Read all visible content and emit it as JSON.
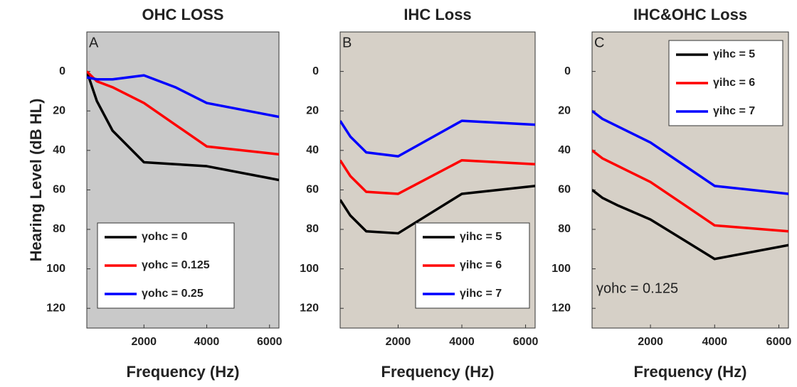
{
  "chart_data": [
    {
      "type": "line",
      "title": "OHC LOSS",
      "panel_label": "A",
      "xlabel": "Frequency (Hz)",
      "ylabel": "Hearing Level (dB HL)",
      "background": "#c9c9c9",
      "legend": "lower left",
      "x": [
        180,
        500,
        1000,
        2000,
        3000,
        4000,
        6300
      ],
      "xlim": [
        180,
        6300
      ],
      "xticks": [
        2000,
        4000,
        6000
      ],
      "ylim": [
        130,
        -20
      ],
      "yticks": [
        0,
        20,
        40,
        60,
        80,
        100,
        120
      ],
      "series": [
        {
          "name": "γohc = 0",
          "color": "#000000",
          "values": [
            0,
            15,
            30,
            46,
            47,
            48,
            55
          ]
        },
        {
          "name": "γohc = 0.125",
          "color": "#ff0000",
          "values": [
            0,
            5,
            8,
            16,
            27,
            38,
            42
          ]
        },
        {
          "name": "γohc = 0.25",
          "color": "#0000ff",
          "values": [
            3,
            4,
            4,
            2,
            8,
            16,
            23
          ]
        }
      ]
    },
    {
      "type": "line",
      "title": "IHC Loss",
      "panel_label": "B",
      "xlabel": "Frequency (Hz)",
      "background": "#d6d0c7",
      "legend": "lower right",
      "x": [
        180,
        500,
        1000,
        2000,
        4000,
        6300
      ],
      "xlim": [
        180,
        6300
      ],
      "xticks": [
        2000,
        4000,
        6000
      ],
      "ylim": [
        130,
        -20
      ],
      "yticks": [
        0,
        20,
        40,
        60,
        80,
        100,
        120
      ],
      "series": [
        {
          "name": "γihc = 5",
          "color": "#000000",
          "values": [
            65,
            73,
            81,
            82,
            62,
            58
          ]
        },
        {
          "name": "γihc = 6",
          "color": "#ff0000",
          "values": [
            45,
            53,
            61,
            62,
            45,
            47
          ]
        },
        {
          "name": "γihc = 7",
          "color": "#0000ff",
          "values": [
            25,
            33,
            41,
            43,
            25,
            27
          ]
        }
      ]
    },
    {
      "type": "line",
      "title": "IHC&OHC Loss",
      "panel_label": "C",
      "xlabel": "Frequency (Hz)",
      "background": "#d6d0c7",
      "legend": "upper right",
      "annotation": "γohc = 0.125",
      "x": [
        180,
        500,
        1000,
        2000,
        3000,
        4000,
        6300
      ],
      "xlim": [
        180,
        6300
      ],
      "xticks": [
        2000,
        4000,
        6000
      ],
      "ylim": [
        130,
        -20
      ],
      "yticks": [
        0,
        20,
        40,
        60,
        80,
        100,
        120
      ],
      "series": [
        {
          "name": "γihc = 5",
          "color": "#000000",
          "values": [
            60,
            64,
            68,
            75,
            85,
            95,
            88
          ]
        },
        {
          "name": "γihc = 6",
          "color": "#ff0000",
          "values": [
            40,
            44,
            48,
            56,
            67,
            78,
            81
          ]
        },
        {
          "name": "γihc = 7",
          "color": "#0000ff",
          "values": [
            20,
            24,
            28,
            36,
            47,
            58,
            62
          ]
        }
      ]
    }
  ]
}
